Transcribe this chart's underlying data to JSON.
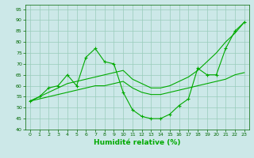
{
  "xlabel": "Humidité relative (%)",
  "bg_color": "#cce8e8",
  "line_color": "#00aa00",
  "grid_color": "#99ccbb",
  "ylim": [
    40,
    97
  ],
  "xlim": [
    -0.5,
    23.5
  ],
  "yticks": [
    40,
    45,
    50,
    55,
    60,
    65,
    70,
    75,
    80,
    85,
    90,
    95
  ],
  "xticks": [
    0,
    1,
    2,
    3,
    4,
    5,
    6,
    7,
    8,
    9,
    10,
    11,
    12,
    13,
    14,
    15,
    16,
    17,
    18,
    19,
    20,
    21,
    22,
    23
  ],
  "line1_x": [
    0,
    1,
    2,
    3,
    4,
    5,
    6,
    7,
    8,
    9,
    10,
    11,
    12,
    13,
    14,
    15,
    16,
    17,
    18,
    19,
    20,
    21,
    22,
    23
  ],
  "line1_y": [
    53,
    55,
    59,
    60,
    65,
    60,
    73,
    77,
    71,
    70,
    57,
    49,
    46,
    45,
    45,
    47,
    51,
    54,
    68,
    65,
    65,
    77,
    85,
    89
  ],
  "line2_x": [
    0,
    1,
    2,
    3,
    4,
    5,
    6,
    7,
    8,
    9,
    10,
    11,
    12,
    13,
    14,
    15,
    16,
    17,
    18,
    19,
    20,
    21,
    22,
    23
  ],
  "line2_y": [
    53,
    55,
    57,
    59,
    61,
    62,
    63,
    64,
    65,
    66,
    67,
    63,
    61,
    59,
    59,
    60,
    62,
    64,
    67,
    71,
    75,
    80,
    84,
    89
  ],
  "line3_x": [
    0,
    1,
    2,
    3,
    4,
    5,
    6,
    7,
    8,
    9,
    10,
    11,
    12,
    13,
    14,
    15,
    16,
    17,
    18,
    19,
    20,
    21,
    22,
    23
  ],
  "line3_y": [
    53,
    54,
    55,
    56,
    57,
    58,
    59,
    60,
    60,
    61,
    62,
    59,
    57,
    56,
    56,
    57,
    58,
    59,
    60,
    61,
    62,
    63,
    65,
    66
  ]
}
